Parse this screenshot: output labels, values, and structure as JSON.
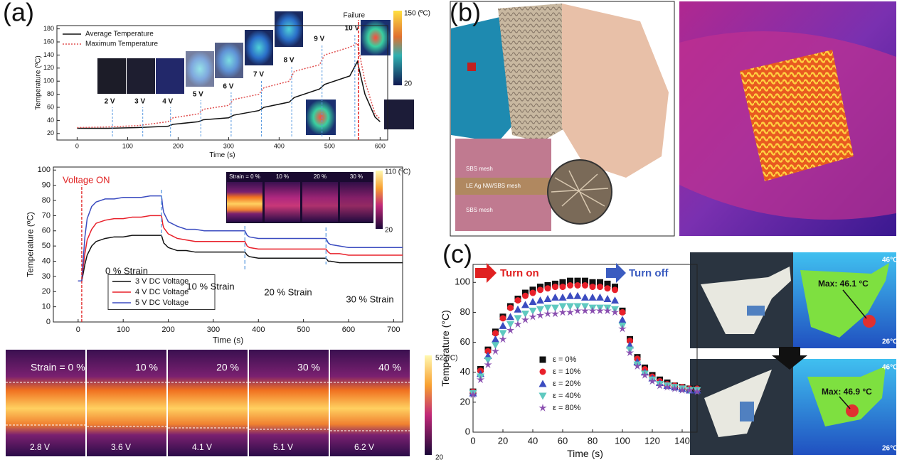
{
  "figure": {
    "panel_labels": [
      "(a)",
      "(b)",
      "(c)"
    ],
    "a_top_colorbar": [
      "150 (ºC)",
      "20"
    ],
    "a_mid_inset": {
      "labels": [
        "Strain = 0 %",
        "10 %",
        "20 %",
        "30 %"
      ],
      "colorbar": [
        "110 (ºC)",
        "20"
      ]
    },
    "a_bottom": {
      "strain_labels": [
        "Strain = 0 %",
        "10 %",
        "20 %",
        "30 %",
        "40 %"
      ],
      "voltages": [
        "2.8 V",
        "3.6 V",
        "4.1 V",
        "5.1 V",
        "6.2 V"
      ],
      "colorbar": [
        "52 (ºC)",
        "20"
      ]
    },
    "b_inset": [
      "SBS mesh",
      "LE Ag NW/SBS mesh",
      "SBS mesh"
    ],
    "c_images": {
      "scale_max": [
        "46°C",
        "46°C"
      ],
      "scale_min": [
        "26°C",
        "26°C"
      ],
      "max_labels": [
        "Max: 46.1 °C",
        "Max: 46.9 °C"
      ]
    }
  },
  "chart_data": [
    {
      "type": "line",
      "xlabel": "Time (s)",
      "ylabel": "Temperature (ºC)",
      "x": [
        0,
        60,
        120,
        180,
        190,
        240,
        250,
        300,
        310,
        360,
        370,
        420,
        430,
        480,
        490,
        540,
        555,
        570,
        590,
        600
      ],
      "xlim": [
        -40,
        615
      ],
      "xticks": [
        0,
        100,
        200,
        300,
        400,
        500,
        600
      ],
      "ylim": [
        10,
        185
      ],
      "yticks": [
        20,
        40,
        60,
        80,
        100,
        120,
        140,
        160,
        180
      ],
      "legend": "upper left",
      "series": [
        {
          "name": "Average Temperature",
          "color": "#111111",
          "dash": false,
          "values": [
            28,
            28,
            29,
            31,
            34,
            38,
            41,
            44,
            48,
            55,
            60,
            68,
            75,
            88,
            95,
            108,
            130,
            80,
            45,
            38
          ]
        },
        {
          "name": "Maximum Temperature",
          "color": "#e05050",
          "dash": true,
          "values": [
            29,
            30,
            32,
            38,
            44,
            50,
            57,
            63,
            72,
            80,
            90,
            100,
            115,
            125,
            140,
            152,
            158,
            100,
            50,
            42
          ]
        }
      ],
      "voltage_lines": {
        "x": [
          70,
          130,
          185,
          245,
          305,
          365,
          425,
          485,
          550
        ],
        "labels": [
          "2 V",
          "3 V",
          "4 V",
          "5 V",
          "6 V",
          "7 V",
          "8 V",
          "9 V",
          "10 V"
        ]
      },
      "failure": {
        "x": 557,
        "label": "Failure"
      }
    },
    {
      "type": "line",
      "xlabel": "Time (s)",
      "ylabel": "Temperature (ºC)",
      "x": [
        0,
        8,
        10,
        15,
        20,
        30,
        40,
        60,
        80,
        100,
        120,
        140,
        160,
        185,
        188,
        190,
        200,
        220,
        240,
        260,
        280,
        300,
        320,
        340,
        370,
        375,
        380,
        400,
        450,
        500,
        550,
        555,
        560,
        580,
        600,
        650,
        720
      ],
      "xlim": [
        -55,
        720
      ],
      "xticks": [
        0,
        100,
        200,
        300,
        400,
        500,
        600,
        700
      ],
      "ylim": [
        0,
        102
      ],
      "yticks": [
        0,
        10,
        20,
        30,
        40,
        50,
        60,
        70,
        80,
        90,
        100
      ],
      "legend": "lower left",
      "series": [
        {
          "name": "3 V DC Voltage",
          "color": "#111111",
          "dash": false,
          "values": [
            27,
            27,
            30,
            38,
            44,
            50,
            53,
            55,
            56,
            56,
            57,
            57,
            57,
            57,
            54,
            52,
            49,
            47,
            47,
            46,
            46,
            46,
            46,
            46,
            46,
            44,
            43,
            42,
            42,
            42,
            42,
            40,
            40,
            39,
            39,
            39,
            39
          ]
        },
        {
          "name": "4 V DC Voltage",
          "color": "#e8202a",
          "dash": false,
          "values": [
            27,
            27,
            33,
            45,
            54,
            61,
            65,
            67,
            68,
            68,
            69,
            69,
            70,
            70,
            64,
            62,
            58,
            55,
            54,
            53,
            53,
            53,
            53,
            53,
            53,
            50,
            49,
            48,
            48,
            48,
            48,
            46,
            45,
            45,
            44,
            44,
            44
          ]
        },
        {
          "name": "5 V DC Voltage",
          "color": "#3b4cc0",
          "dash": false,
          "values": [
            27,
            27,
            36,
            56,
            68,
            76,
            79,
            81,
            81,
            82,
            82,
            82,
            83,
            83,
            75,
            72,
            66,
            63,
            61,
            61,
            60,
            60,
            60,
            60,
            60,
            57,
            56,
            55,
            55,
            55,
            55,
            52,
            51,
            50,
            49,
            49,
            49
          ]
        }
      ],
      "voltage_on": {
        "x": 8,
        "label": "Voltage ON"
      },
      "strain_lines": {
        "x": [
          185,
          370,
          550
        ]
      },
      "strain_labels": [
        "0 % Strain",
        "10 % Strain",
        "20 % Strain",
        "30 % Strain"
      ]
    },
    {
      "type": "scatter",
      "xlabel": "Time (s)",
      "ylabel": "Temperature (°C)",
      "x": [
        0,
        5,
        10,
        15,
        20,
        25,
        30,
        35,
        40,
        45,
        50,
        55,
        60,
        65,
        70,
        75,
        80,
        85,
        90,
        95,
        100,
        105,
        110,
        115,
        120,
        125,
        130,
        135,
        140,
        145,
        150
      ],
      "xlim": [
        0,
        150
      ],
      "xticks": [
        0,
        20,
        40,
        60,
        80,
        100,
        120,
        140
      ],
      "ylim": [
        0,
        112
      ],
      "yticks": [
        0,
        20,
        40,
        60,
        80,
        100
      ],
      "legend": "lower center",
      "turn_on": "Turn on",
      "turn_off": "Turn off",
      "series": [
        {
          "name": "ε = 0%",
          "color": "#111111",
          "marker": "square",
          "values": [
            27,
            42,
            55,
            67,
            77,
            84,
            89,
            93,
            95,
            97,
            98,
            99,
            100,
            101,
            101,
            101,
            100,
            100,
            99,
            97,
            81,
            62,
            50,
            43,
            38,
            35,
            33,
            31,
            30,
            29,
            29
          ]
        },
        {
          "name": "ε = 10%",
          "color": "#e8202a",
          "marker": "circle",
          "values": [
            27,
            41,
            54,
            66,
            76,
            83,
            88,
            91,
            93,
            95,
            96,
            97,
            97,
            98,
            98,
            98,
            97,
            97,
            96,
            95,
            80,
            61,
            49,
            42,
            37,
            34,
            32,
            31,
            30,
            29,
            29
          ]
        },
        {
          "name": "ε = 20%",
          "color": "#3b4cc0",
          "marker": "triangle-up",
          "values": [
            26,
            39,
            51,
            62,
            71,
            77,
            82,
            85,
            87,
            88,
            89,
            90,
            90,
            91,
            91,
            90,
            90,
            90,
            89,
            88,
            75,
            58,
            47,
            40,
            36,
            33,
            31,
            30,
            29,
            28,
            28
          ]
        },
        {
          "name": "ε = 40%",
          "color": "#5fc9c0",
          "marker": "triangle-down",
          "values": [
            26,
            37,
            48,
            58,
            66,
            72,
            76,
            79,
            81,
            82,
            83,
            83,
            84,
            84,
            84,
            84,
            83,
            83,
            83,
            82,
            71,
            55,
            45,
            39,
            35,
            32,
            31,
            30,
            29,
            28,
            28
          ]
        },
        {
          "name": "ε = 80%",
          "color": "#8a4fb0",
          "marker": "star",
          "values": [
            25,
            35,
            45,
            54,
            62,
            68,
            72,
            75,
            77,
            78,
            79,
            79,
            80,
            80,
            81,
            81,
            81,
            81,
            81,
            80,
            69,
            53,
            44,
            38,
            34,
            31,
            30,
            29,
            28,
            28,
            27
          ]
        }
      ]
    }
  ]
}
